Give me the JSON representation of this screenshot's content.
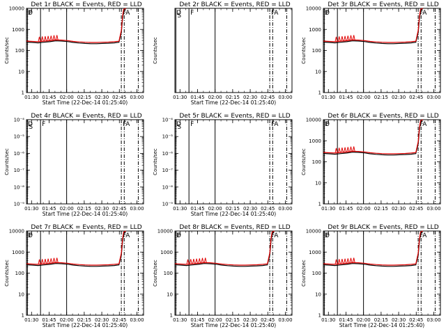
{
  "figure": {
    "panels": [
      {
        "title": "Det 1r BLACK = Events, RED = LLD",
        "ylabel": "Counts/sec",
        "xlabel": "Start Time (22-Dec-14 01:25:40)",
        "has_data": true,
        "y_tick_labels": [
          "1",
          "10",
          "100",
          "1000",
          "10000"
        ],
        "flags": [
          {
            "t": 0.0,
            "label": "D"
          },
          {
            "t": 0.8,
            "label": "F"
          },
          {
            "t": 81.0,
            "label": "F"
          },
          {
            "t": 83.5,
            "label": "A"
          }
        ]
      },
      {
        "title": "Det 2r BLACK = Events, RED = LLD",
        "ylabel": "Counts/sec",
        "xlabel": "Start Time (22-Dec-14 01:25:40)",
        "has_data": false,
        "y_tick_labels": [],
        "flags": [
          {
            "t": 0.0,
            "label": "D"
          },
          {
            "t": 0.8,
            "label": "S"
          },
          {
            "t": 12.0,
            "label": "F"
          },
          {
            "t": 81.0,
            "label": "F"
          },
          {
            "t": 83.5,
            "label": "A"
          }
        ]
      },
      {
        "title": "Det 3r BLACK = Events, RED = LLD",
        "ylabel": "Counts/sec",
        "xlabel": "",
        "has_data": true,
        "y_tick_labels": [
          "1",
          "10",
          "100",
          "1000",
          "10000"
        ],
        "flags": [
          {
            "t": 0.0,
            "label": "D"
          },
          {
            "t": 0.8,
            "label": "F"
          },
          {
            "t": 81.0,
            "label": "F"
          },
          {
            "t": 83.5,
            "label": "A"
          }
        ]
      },
      {
        "title": "Det 4r BLACK = Events, RED = LLD",
        "ylabel": "Counts/sec",
        "xlabel": "Start Time (22-Dec-14 01:25:40)",
        "has_data": false,
        "y_tick_labels": [
          "10⁻⁹",
          "10⁻⁸",
          "10⁻⁷",
          "10⁻⁶",
          "10⁻⁵",
          "10⁻⁴"
        ],
        "flags": [
          {
            "t": 0.0,
            "label": "D"
          },
          {
            "t": 0.8,
            "label": "S"
          },
          {
            "t": 12.0,
            "label": "F"
          },
          {
            "t": 81.0,
            "label": "F"
          },
          {
            "t": 83.5,
            "label": "A"
          }
        ]
      },
      {
        "title": "Det 5r BLACK = Events, RED = LLD",
        "ylabel": "Counts/sec",
        "xlabel": "Start Time (22-Dec-14 01:25:40)",
        "has_data": false,
        "y_tick_labels": [
          "10⁻⁹",
          "10⁻⁸",
          "10⁻⁷",
          "10⁻⁶",
          "10⁻⁵",
          "10⁻⁴"
        ],
        "flags": [
          {
            "t": 0.0,
            "label": "D"
          },
          {
            "t": 0.8,
            "label": "S"
          },
          {
            "t": 12.0,
            "label": "F"
          },
          {
            "t": 81.0,
            "label": "F"
          },
          {
            "t": 83.5,
            "label": "A"
          }
        ]
      },
      {
        "title": "Det 6r BLACK = Events, RED = LLD",
        "ylabel": "Counts/sec",
        "xlabel": "",
        "has_data": true,
        "y_tick_labels": [
          "1",
          "10",
          "100",
          "1000",
          "10000"
        ],
        "flags": [
          {
            "t": 0.0,
            "label": "D"
          },
          {
            "t": 0.8,
            "label": "F"
          },
          {
            "t": 81.0,
            "label": "F"
          },
          {
            "t": 83.5,
            "label": "A"
          }
        ]
      },
      {
        "title": "Det 7r BLACK = Events, RED = LLD",
        "ylabel": "Counts/sec",
        "xlabel": "Start Time (22-Dec-14 01:25:40)",
        "has_data": true,
        "y_tick_labels": [
          "1",
          "10",
          "100",
          "1000",
          "10000"
        ],
        "flags": [
          {
            "t": 0.0,
            "label": "D"
          },
          {
            "t": 0.8,
            "label": "F"
          },
          {
            "t": 81.0,
            "label": "F"
          },
          {
            "t": 83.5,
            "label": "A"
          }
        ]
      },
      {
        "title": "Det 8r BLACK = Events, RED = LLD",
        "ylabel": "Counts/sec",
        "xlabel": "Start Time (22-Dec-14 01:25:40)",
        "has_data": true,
        "y_tick_labels": [
          "1",
          "10",
          "100",
          "1000",
          "10000"
        ],
        "flags": [
          {
            "t": 0.0,
            "label": "D"
          },
          {
            "t": 0.8,
            "label": "F"
          },
          {
            "t": 81.0,
            "label": "F"
          },
          {
            "t": 83.5,
            "label": "A"
          }
        ]
      },
      {
        "title": "Det 9r BLACK = Events, RED = LLD",
        "ylabel": "Counts/sec",
        "xlabel": "Start Time (22-Dec-14 01:25:40)",
        "has_data": true,
        "y_tick_labels": [
          "1",
          "10",
          "100",
          "1000",
          "10000"
        ],
        "flags": [
          {
            "t": 0.0,
            "label": "D"
          },
          {
            "t": 0.8,
            "label": "F"
          },
          {
            "t": 81.0,
            "label": "F"
          },
          {
            "t": 83.5,
            "label": "A"
          }
        ]
      }
    ]
  },
  "chart_data": {
    "type": "line",
    "x_tick_labels": [
      "01:30",
      "01:45",
      "02:00",
      "02:15",
      "02:30",
      "02:45",
      "03:00"
    ],
    "x_tick_minutes": [
      4.33,
      19.33,
      34.33,
      49.33,
      64.33,
      79.33,
      94.33
    ],
    "x_range_minutes": [
      0,
      100
    ],
    "y_scale": "log",
    "y_range": [
      1,
      10000
    ],
    "x_vertical_lines_minutes": [
      0.8,
      12.0,
      34.3
    ],
    "x_dashdot_lines_minutes": [
      0.0,
      81.0,
      83.5,
      95.5
    ],
    "series": [
      {
        "name": "Events",
        "color": "#000000"
      },
      {
        "name": "LLD",
        "color": "#e00000"
      }
    ],
    "events_curve": [
      [
        0,
        250
      ],
      [
        5,
        240
      ],
      [
        10,
        230
      ],
      [
        15,
        245
      ],
      [
        20,
        260
      ],
      [
        25,
        285
      ],
      [
        30,
        280
      ],
      [
        35,
        265
      ],
      [
        40,
        240
      ],
      [
        45,
        225
      ],
      [
        50,
        215
      ],
      [
        55,
        210
      ],
      [
        60,
        210
      ],
      [
        65,
        215
      ],
      [
        70,
        220
      ],
      [
        75,
        230
      ],
      [
        79,
        245
      ],
      [
        81,
        700
      ],
      [
        82,
        3000
      ],
      [
        83,
        8000
      ],
      [
        85,
        10000
      ]
    ],
    "lld_curve": [
      [
        0,
        280
      ],
      [
        5,
        270
      ],
      [
        10,
        260
      ],
      [
        15,
        275
      ],
      [
        20,
        290
      ],
      [
        25,
        315
      ],
      [
        30,
        310
      ],
      [
        35,
        295
      ],
      [
        40,
        270
      ],
      [
        45,
        255
      ],
      [
        50,
        245
      ],
      [
        55,
        240
      ],
      [
        60,
        240
      ],
      [
        65,
        245
      ],
      [
        70,
        250
      ],
      [
        75,
        260
      ],
      [
        79,
        275
      ],
      [
        81,
        900
      ],
      [
        82,
        4000
      ],
      [
        83,
        9000
      ],
      [
        85,
        10000
      ]
    ],
    "lld_spikes_minutes": [
      11,
      13.5,
      16,
      18.5,
      21,
      23.5,
      26
    ]
  }
}
